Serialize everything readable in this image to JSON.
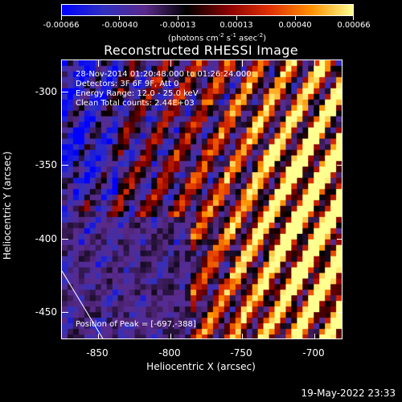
{
  "colorbar": {
    "ticks": [
      "-0.00066",
      "-0.00040",
      "-0.00013",
      "0.00013",
      "0.00040",
      "0.00066"
    ],
    "units_base": "(photons cm",
    "units_exp1": "-2",
    "units_mid1": " s",
    "units_exp2": "-1",
    "units_mid2": " asec",
    "units_exp3": "-2",
    "units_end": ")"
  },
  "title": "Reconstructed RHESSI Image",
  "annotations": {
    "time_range": "28-Nov-2014 01:20:48.000 to 01:26:24.000",
    "detectors": "Detectors: 3F 6F 9F, Att 0",
    "energy": "Energy Range: 12.0 - 25.0 keV",
    "clean": "Clean     Total counts: 2.44E+03",
    "peak": "Position of Peak = [-697,-388]"
  },
  "axes": {
    "xlabel": "Heliocentric X (arcsec)",
    "ylabel": "Heliocentric Y (arcsec)",
    "xticks": [
      "-850",
      "-800",
      "-750",
      "-700"
    ],
    "yticks": [
      "-300",
      "-350",
      "-400",
      "-450"
    ],
    "xlim": [
      -875,
      -680
    ],
    "ylim": [
      -470,
      -277
    ]
  },
  "timestamp": "19-May-2022 23:33",
  "colors": {
    "background": "#000000",
    "foreground": "#ffffff",
    "colormap": [
      "#0000ff",
      "#3030c0",
      "#5a2a8a",
      "#000000",
      "#8a0000",
      "#e03000",
      "#ff9000",
      "#ffff90"
    ]
  }
}
